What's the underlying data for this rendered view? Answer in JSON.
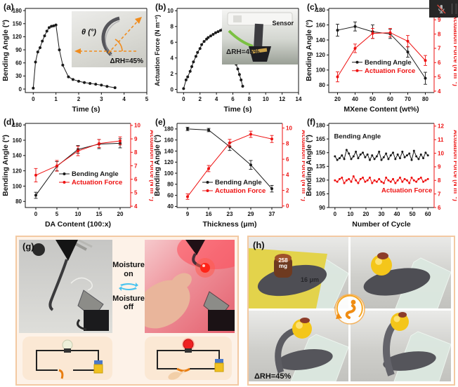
{
  "colors": {
    "accent_red": "#ee1111",
    "series_black": "#1a1a1a",
    "frame_orange": "#f3c9a2",
    "panel_peach": "#fdf2e8",
    "circuit_bg": "#fbe8d4",
    "moisture_cyan": "#49c3ef",
    "logo_orange": "#f08c1e"
  },
  "overlay": {
    "mic_muted": true
  },
  "panels": {
    "a": {
      "inset": {
        "angle_label": "θ (°)",
        "rh_label": "ΔRH=45%"
      }
    },
    "b": {
      "inset": {
        "sensor_label": "Sensor",
        "rh_label": "ΔRH=45%"
      }
    },
    "g": {
      "label": "(g)",
      "moisture_on": "Moisture on",
      "moisture_off": "Moisture off"
    },
    "h": {
      "label": "(h)",
      "weight_value": "258",
      "weight_unit": "mg",
      "thickness_label": "16 μm",
      "rh_label": "ΔRH=45%"
    }
  },
  "chart_data": [
    {
      "type": "line",
      "title": "(a)",
      "xlabel": "Time (s)",
      "ylabel": "Bending Angle (°)",
      "xlim": [
        -0.35,
        5
      ],
      "xticks": [
        0,
        1,
        2,
        3,
        4,
        5
      ],
      "ylim": [
        -8,
        185
      ],
      "yticks": [
        0,
        30,
        60,
        90,
        120,
        150,
        180
      ],
      "series": [
        {
          "name": "Bending Angle",
          "axis": "left",
          "color": "#1a1a1a",
          "x": [
            0,
            0.1,
            0.2,
            0.3,
            0.4,
            0.5,
            0.6,
            0.7,
            0.8,
            0.9,
            1.0,
            1.15,
            1.3,
            1.55,
            1.75,
            2.0,
            2.25,
            2.5,
            2.75,
            3.0,
            3.25,
            3.6
          ],
          "y": [
            2,
            62,
            85,
            95,
            110,
            122,
            133,
            141,
            144,
            145,
            147,
            90,
            55,
            28,
            22,
            18,
            15,
            13,
            11,
            9,
            6,
            3
          ]
        }
      ]
    },
    {
      "type": "line",
      "title": "(b)",
      "xlabel": "Time (s)",
      "ylabel": "Actuation Force (N m⁻²)",
      "xlim": [
        -0.8,
        14
      ],
      "xticks": [
        0,
        2,
        4,
        6,
        8,
        10,
        12,
        14
      ],
      "ylim": [
        -0.4,
        10.3
      ],
      "yticks": [
        0,
        2,
        4,
        6,
        8,
        10
      ],
      "series": [
        {
          "name": "Actuation Force",
          "axis": "left",
          "color": "#1a1a1a",
          "x": [
            0,
            0.3,
            0.5,
            0.8,
            1.0,
            1.2,
            1.5,
            1.7,
            2.0,
            2.2,
            2.5,
            2.8,
            3.0,
            3.3,
            3.6,
            3.9,
            4.2,
            4.5,
            4.8,
            5.0,
            5.2,
            5.4,
            5.6,
            5.8,
            6.0,
            6.2,
            6.4,
            6.6,
            6.8,
            7.0,
            7.2
          ],
          "y": [
            0.1,
            1.2,
            1.6,
            2.3,
            2.9,
            3.5,
            4.2,
            4.7,
            5.2,
            5.7,
            6.1,
            6.4,
            6.6,
            6.8,
            7.0,
            7.2,
            7.35,
            7.5,
            7.7,
            7.85,
            7.95,
            6.1,
            5.6,
            5.0,
            4.4,
            3.8,
            3.2,
            2.6,
            1.9,
            1.2,
            0.4
          ]
        }
      ]
    },
    {
      "type": "line",
      "title": "(c)",
      "xlabel": "MXene Content (wt%)",
      "ylabel": "Bending Angle (°)",
      "categories": [
        "20",
        "40",
        "50",
        "60",
        "70",
        "80"
      ],
      "ylim": [
        70,
        182
      ],
      "yticks": [
        80,
        100,
        120,
        140,
        160,
        180
      ],
      "right": {
        "ylabel": "Actuation Force (N m⁻²)",
        "ylim": [
          3.9,
          9.8
        ],
        "yticks": [
          4,
          5,
          6,
          7,
          8,
          9
        ],
        "color": "#ee1111"
      },
      "legend": {
        "x": 0.22,
        "y": 0.64
      },
      "series": [
        {
          "name": "Bending Angle",
          "axis": "left",
          "color": "#1a1a1a",
          "y": [
            153,
            158,
            151,
            148,
            124,
            89
          ],
          "yerr": [
            8,
            6,
            9,
            6,
            7,
            8
          ]
        },
        {
          "name": "Actuation Force",
          "axis": "right",
          "color": "#ee1111",
          "y": [
            5.0,
            7.0,
            8.05,
            8.1,
            7.5,
            6.15
          ],
          "yerr": [
            0.35,
            0.3,
            0.35,
            0.3,
            0.4,
            0.35
          ]
        }
      ]
    },
    {
      "type": "line",
      "title": "(d)",
      "xlabel": "DA Content (100:x)",
      "ylabel": "Bending Angle (°)",
      "xlim": [
        -2.5,
        22.5
      ],
      "xticks": [
        0,
        5,
        10,
        15,
        20
      ],
      "ylim": [
        72,
        182
      ],
      "yticks": [
        80,
        100,
        120,
        140,
        160,
        180
      ],
      "right": {
        "ylabel": "Actuation Force (N m⁻²)",
        "ylim": [
          3.9,
          10.15
        ],
        "yticks": [
          4,
          5,
          6,
          7,
          8,
          9,
          10
        ],
        "color": "#ee1111"
      },
      "legend": {
        "x": 0.32,
        "y": 0.6
      },
      "series": [
        {
          "name": "Bending Angle",
          "axis": "left",
          "color": "#1a1a1a",
          "x": [
            0,
            5,
            10,
            15,
            20
          ],
          "y": [
            88,
            126,
            148,
            155,
            156
          ],
          "yerr": [
            4,
            6,
            5,
            6,
            6
          ]
        },
        {
          "name": "Actuation Force",
          "axis": "right",
          "color": "#ee1111",
          "x": [
            0,
            5,
            10,
            15,
            20
          ],
          "y": [
            6.3,
            7.0,
            8.1,
            8.65,
            8.85
          ],
          "yerr": [
            0.5,
            0.4,
            0.35,
            0.3,
            0.3
          ]
        }
      ]
    },
    {
      "type": "line",
      "title": "(e)",
      "xlabel": "Thickness (μm)",
      "ylabel": "Bending Angle (°)",
      "categories": [
        "9",
        "16",
        "23",
        "29",
        "37"
      ],
      "ylim": [
        38,
        190
      ],
      "yticks": [
        40,
        60,
        80,
        100,
        120,
        140,
        160,
        180
      ],
      "right": {
        "ylabel": "Actuation Force (N m⁻²)",
        "ylim": [
          -0.2,
          10.6
        ],
        "yticks": [
          0,
          2,
          4,
          6,
          8,
          10
        ],
        "color": "#ee1111"
      },
      "legend": {
        "x": 0.24,
        "y": 0.7
      },
      "series": [
        {
          "name": "Bending Angle",
          "axis": "left",
          "color": "#1a1a1a",
          "y": [
            180,
            178,
            148,
            115,
            72
          ],
          "yerr": [
            3,
            3,
            7,
            8,
            6
          ]
        },
        {
          "name": "Actuation Force",
          "axis": "right",
          "color": "#ee1111",
          "y": [
            1.2,
            4.8,
            8.1,
            9.2,
            8.6
          ],
          "yerr": [
            0.35,
            0.4,
            0.45,
            0.4,
            0.45
          ]
        }
      ]
    },
    {
      "type": "line",
      "title": "(f)",
      "xlabel": "Number of Cycle",
      "ylabel": "Bending Angle (°)",
      "xlim": [
        -4,
        64
      ],
      "xticks": [
        0,
        10,
        20,
        30,
        40,
        50,
        60
      ],
      "ylim": [
        90,
        182
      ],
      "yticks": [
        90,
        105,
        120,
        135,
        150,
        165,
        180
      ],
      "right": {
        "ylabel": "Actuation Force (N m⁻²)",
        "ylim": [
          6,
          12.2
        ],
        "yticks": [
          6,
          7,
          8,
          9,
          10,
          11,
          12
        ],
        "color": "#ee1111"
      },
      "marker_r": 1.5,
      "annotations": [
        {
          "text": "Bending Angle",
          "fx": 0.05,
          "fy": 0.18,
          "color": "#1a1a1a"
        },
        {
          "text": "Actuation Force",
          "fx": 0.5,
          "fy": 0.82,
          "color": "#ee1111"
        }
      ],
      "series": [
        {
          "name": "Bending Angle",
          "axis": "left",
          "color": "#1a1a1a",
          "x": [
            0,
            1.5,
            3,
            4.5,
            6,
            7.5,
            9,
            10.5,
            12,
            13.5,
            15,
            16.5,
            18,
            19.5,
            21,
            22.5,
            24,
            25.5,
            27,
            28.5,
            30,
            31.5,
            33,
            34.5,
            36,
            37.5,
            39,
            40.5,
            42,
            43.5,
            45,
            46.5,
            48,
            49.5,
            51,
            52.5,
            54,
            55.5,
            57,
            58.5,
            60
          ],
          "y": [
            146,
            142,
            144,
            147,
            143,
            153,
            149,
            143,
            146,
            151,
            144,
            148,
            150,
            145,
            148,
            142,
            147,
            143,
            146,
            151,
            142,
            145,
            149,
            143,
            147,
            150,
            143,
            148,
            144,
            151,
            145,
            147,
            149,
            142,
            152,
            146,
            143,
            148,
            144,
            150,
            147
          ]
        },
        {
          "name": "Actuation Force",
          "axis": "right",
          "color": "#ee1111",
          "x": [
            0,
            1.5,
            3,
            4.5,
            6,
            7.5,
            9,
            10.5,
            12,
            13.5,
            15,
            16.5,
            18,
            19.5,
            21,
            22.5,
            24,
            25.5,
            27,
            28.5,
            30,
            31.5,
            33,
            34.5,
            36,
            37.5,
            39,
            40.5,
            42,
            43.5,
            45,
            46.5,
            48,
            49.5,
            51,
            52.5,
            54,
            55.5,
            57,
            58.5,
            60
          ],
          "y": [
            8.0,
            7.9,
            8.1,
            8.2,
            7.8,
            8.0,
            8.1,
            7.9,
            8.3,
            8.0,
            7.8,
            8.1,
            8.2,
            7.9,
            8.0,
            8.2,
            7.8,
            8.0,
            7.9,
            8.1,
            7.9,
            7.8,
            8.2,
            8.0,
            7.9,
            8.1,
            7.8,
            8.0,
            8.2,
            7.9,
            8.1,
            8.0,
            7.8,
            8.2,
            8.0,
            7.9,
            8.1,
            8.2,
            7.9,
            8.0,
            8.1
          ]
        }
      ]
    }
  ]
}
